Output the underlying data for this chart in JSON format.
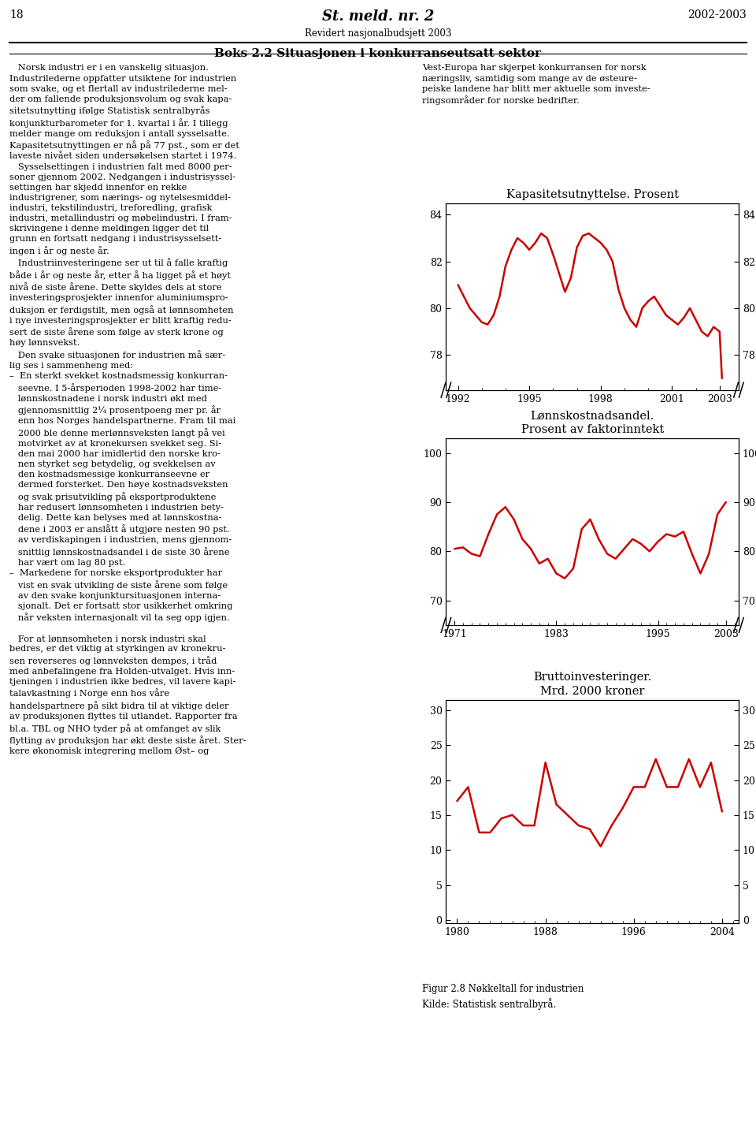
{
  "chart1": {
    "title": "Kapasitetsutnyttelse. Prosent",
    "ylim": [
      76.5,
      84.5
    ],
    "yticks": [
      78,
      80,
      82,
      84
    ],
    "xlim": [
      1991.5,
      2003.8
    ],
    "xticks": [
      1992,
      1995,
      1998,
      2001,
      2003
    ],
    "years": [
      1992.0,
      1992.25,
      1992.5,
      1992.75,
      1993.0,
      1993.25,
      1993.5,
      1993.75,
      1994.0,
      1994.25,
      1994.5,
      1994.75,
      1995.0,
      1995.25,
      1995.5,
      1995.75,
      1996.0,
      1996.25,
      1996.5,
      1996.75,
      1997.0,
      1997.25,
      1997.5,
      1997.75,
      1998.0,
      1998.25,
      1998.5,
      1998.75,
      1999.0,
      1999.25,
      1999.5,
      1999.75,
      2000.0,
      2000.25,
      2000.5,
      2000.75,
      2001.0,
      2001.25,
      2001.5,
      2001.75,
      2002.0,
      2002.25,
      2002.5,
      2002.75,
      2003.0,
      2003.1
    ],
    "values": [
      81.0,
      80.5,
      80.0,
      79.7,
      79.4,
      79.3,
      79.7,
      80.5,
      81.8,
      82.5,
      83.0,
      82.8,
      82.5,
      82.8,
      83.2,
      83.0,
      82.3,
      81.5,
      80.7,
      81.3,
      82.6,
      83.1,
      83.2,
      83.0,
      82.8,
      82.5,
      82.0,
      80.8,
      80.0,
      79.5,
      79.2,
      80.0,
      80.3,
      80.5,
      80.1,
      79.7,
      79.5,
      79.3,
      79.6,
      80.0,
      79.5,
      79.0,
      78.8,
      79.2,
      79.0,
      77.0
    ]
  },
  "chart2": {
    "title": "Lønnskostnadsandel.\nProsent av faktorinntekt",
    "ylim": [
      65,
      103
    ],
    "yticks": [
      70,
      80,
      90,
      100
    ],
    "xlim": [
      1970.0,
      2004.5
    ],
    "xticks": [
      1971,
      1983,
      1995,
      2003
    ],
    "years": [
      1971,
      1972,
      1973,
      1974,
      1975,
      1976,
      1977,
      1978,
      1979,
      1980,
      1981,
      1982,
      1983,
      1984,
      1985,
      1986,
      1987,
      1988,
      1989,
      1990,
      1991,
      1992,
      1993,
      1994,
      1995,
      1996,
      1997,
      1998,
      1999,
      2000,
      2001,
      2002,
      2003
    ],
    "values": [
      80.5,
      80.8,
      79.5,
      79.0,
      83.5,
      87.5,
      89.0,
      86.5,
      82.5,
      80.5,
      77.5,
      78.5,
      75.5,
      74.5,
      76.5,
      84.5,
      86.5,
      82.5,
      79.5,
      78.5,
      80.5,
      82.5,
      81.5,
      80.0,
      82.0,
      83.5,
      83.0,
      84.0,
      79.5,
      75.5,
      79.5,
      87.5,
      90.0
    ]
  },
  "chart3": {
    "title": "Bruttoinvesteringer.\nMrd. 2000 kroner",
    "ylim": [
      -0.5,
      31.5
    ],
    "yticks": [
      0,
      5,
      10,
      15,
      20,
      25,
      30
    ],
    "xlim": [
      1979.0,
      2005.5
    ],
    "xticks": [
      1980,
      1988,
      1996,
      2004
    ],
    "years": [
      1980,
      1981,
      1982,
      1983,
      1984,
      1985,
      1986,
      1987,
      1988,
      1989,
      1990,
      1991,
      1992,
      1993,
      1994,
      1995,
      1996,
      1997,
      1998,
      1999,
      2000,
      2001,
      2002,
      2003,
      2004
    ],
    "values": [
      17.0,
      19.0,
      12.5,
      12.5,
      14.5,
      15.0,
      13.5,
      13.5,
      22.5,
      16.5,
      15.0,
      13.5,
      13.0,
      10.5,
      13.5,
      16.0,
      19.0,
      19.0,
      23.0,
      19.0,
      19.0,
      23.0,
      19.0,
      22.5,
      15.5
    ]
  },
  "line_color": "#cc0000",
  "bg_color": "#ffffff",
  "caption": "Figur 2.8 Nøkkeltall for industrien\nKilde: Statistisk sentralbyrå.",
  "left_col_text": [
    "   Norsk industri er i en vanskelig situasjon.",
    "Industrilederne oppfatter utsiktene for industrien",
    "som svake, og et flertall av industrilederne mel-",
    "der om fallende produksjonsvolum og svak kapa-",
    "sitetsutnytting ifølge Statistisk sentralbyrås",
    "konjunkturbarometer for 1. kvartal i år. I tillegg",
    "melder mange om reduksjon i antall sysselsatte.",
    "Kapasitetsutnyttingen er nå på 77 pst., som er det",
    "laveste nivået siden undersøkelsen startet i 1974.",
    "   Sysselsettingen i industrien falt med 8000 per-",
    "soner gjennom 2002. Nedgangen i industrisyssel-",
    "settingen har skjedd innenfor en rekke",
    "industrigrener, som nærings- og nytelsesmiddel-",
    "industri, tekstilindustri, treforedling, grafisk",
    "industri, metallindustri og møbelindustri. I fram-",
    "skrivingene i denne meldingen ligger det til",
    "grunn en fortsatt nedgang i industrisysselsett-",
    "ingen i år og neste år.",
    "   Industriinvesteringene ser ut til å falle kraftig",
    "både i år og neste år, etter å ha ligget på et høyt",
    "nivå de siste årene. Dette skyldes dels at store",
    "investeringsprosjekter innenfor aluminiumspro-",
    "duksjon er ferdigstilt, men også at lønnsomheten",
    "i nye investeringsprosjekter er blitt kraftig redu-",
    "sert de siste årene som følge av sterk krone og",
    "høy lønnsvekst.",
    "   Den svake situasjonen for industrien må sær-",
    "lig ses i sammenheng med:",
    "–  En sterkt svekket kostnadsmessig konkurran-",
    "   seevne. I 5-årsperioden 1998-2002 har time-",
    "   lønnskostnadene i norsk industri økt med",
    "   gjennomsnittlig 2¼ prosentpoeng mer pr. år",
    "   enn hos Norges handelspartnerne. Fram til mai",
    "   2000 ble denne merlønnsveksten langt på vei",
    "   motvirket av at kronekursen svekket seg. Si-",
    "   den mai 2000 har imidlertid den norske kro-",
    "   nen styrket seg betydelig, og svekkelsen av",
    "   den kostnadsmessige konkurranseevne er",
    "   dermed forsterket. Den høye kostnadsveksten",
    "   og svak prisutvikling på eksportproduktene",
    "   har redusert lønnsomheten i industrien bety-",
    "   delig. Dette kan belyses med at lønnskostna-",
    "   dene i 2003 er anslått å utgjøre nesten 90 pst.",
    "   av verdiskapingen i industrien, mens gjennom-",
    "   snittlig lønnskostnadsandel i de siste 30 årene",
    "   har vært om lag 80 pst.",
    "–  Markedene for norske eksportprodukter har",
    "   vist en svak utvikling de siste årene som følge",
    "   av den svake konjunktursituasjonen interna-",
    "   sjonalt. Det er fortsatt stor usikkerhet omkring",
    "   når veksten internasjonalt vil ta seg opp igjen.",
    "",
    "   For at lønnsomheten i norsk industri skal",
    "bedres, er det viktig at styrkingen av kronekru-",
    "sen reverseres og lønnveksten dempes, i tråd",
    "med anbefalingene fra Holden-utvalget. Hvis inn-",
    "tjeningen i industrien ikke bedres, vil lavere kapi-",
    "talavkastning i Norge enn hos våre",
    "handelspartnere på sikt bidra til at viktige deler",
    "av produksjonen flyttes til utlandet. Rapporter fra",
    "bl.a. TBL og NHO tyder på at omfanget av slik",
    "flytting av produksjon har økt deste siste året. Ster-",
    "kere økonomisk integrering mellom Øst– og"
  ],
  "right_col_text": [
    "Vest-Europa har skjerpet konkurransen for norsk",
    "næringsliv, samtidig som mange av de østeure-",
    "peiske landene har blitt mer aktuelle som investe-",
    "ringsområder for norske bedrifter."
  ]
}
